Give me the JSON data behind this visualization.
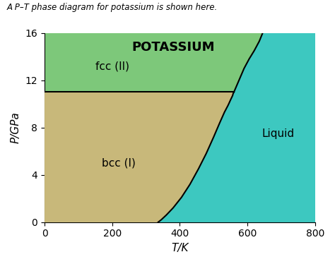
{
  "title": "A P–T phase diagram for potassium is shown here.",
  "xlabel": "T/K",
  "ylabel": "P/GPa",
  "xlim": [
    0,
    800
  ],
  "ylim": [
    0,
    16
  ],
  "xticks": [
    0,
    200,
    400,
    600,
    800
  ],
  "yticks": [
    0,
    4,
    8,
    12,
    16
  ],
  "color_bcc": "#C8B87A",
  "color_fcc": "#7DC87A",
  "color_liquid": "#3DC8C0",
  "label_bcc": "bcc (I)",
  "label_fcc": "fcc (II)",
  "label_liquid": "Liquid",
  "label_potassium": "POTASSIUM",
  "bcc_liquid_T": [
    336,
    345,
    360,
    380,
    405,
    430,
    455,
    478,
    500,
    518,
    532,
    543,
    551,
    556,
    558,
    560
  ],
  "bcc_liquid_P": [
    0.0,
    0.2,
    0.6,
    1.2,
    2.1,
    3.2,
    4.5,
    5.8,
    7.2,
    8.4,
    9.3,
    9.9,
    10.4,
    10.7,
    10.9,
    11.0
  ],
  "fcc_liquid_T": [
    560,
    575,
    590,
    605,
    620,
    635,
    645
  ],
  "fcc_liquid_P": [
    11.0,
    12.0,
    13.0,
    13.8,
    14.5,
    15.3,
    16.0
  ],
  "bcc_fcc_P": 11.0,
  "triple_T": 560,
  "triple_P": 11.0,
  "background_color": "#FFFFFF",
  "suptitle_fontsize": 8.5,
  "label_fontsize": 11,
  "tick_fontsize": 10,
  "region_label_fontsize": 11,
  "potassium_fontsize": 13
}
